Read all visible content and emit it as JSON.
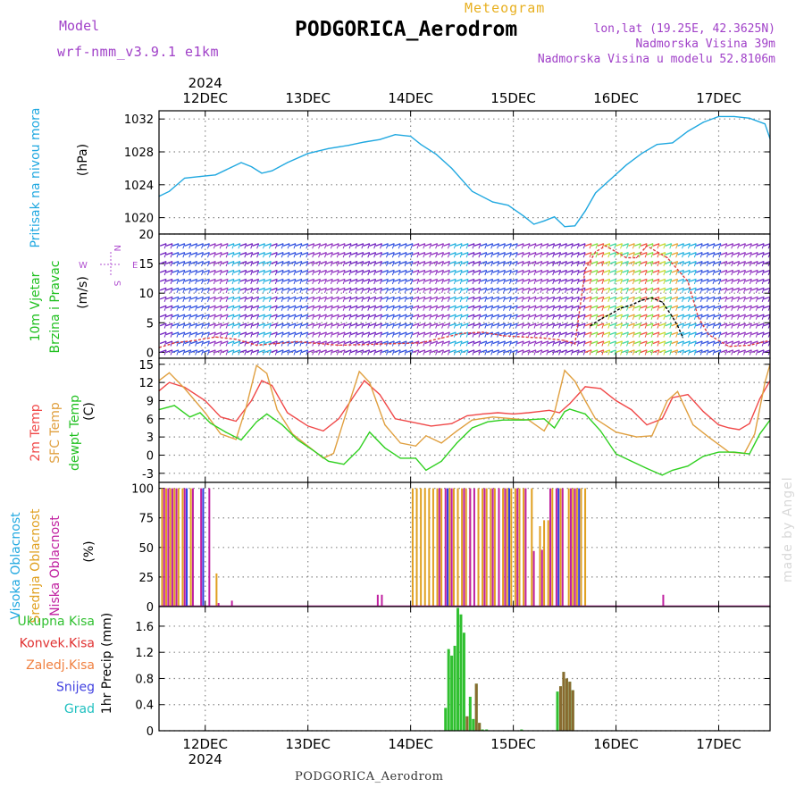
{
  "header": {
    "model_label": "Model",
    "model_name": "wrf-nmm_v3.9.1 e1km",
    "meteogram_label": "Meteogram",
    "station": "PODGORICA_Aerodrom",
    "lonlat": "lon,lat (19.25E, 42.3625N)",
    "altitude": "Nadmorska Visina 39m",
    "model_altitude": "Nadmorska Visina u modelu 52.8106m"
  },
  "footer": {
    "station": "PODGORICA_Aerodrom"
  },
  "watermark": "made by Angel",
  "chart_data": [
    {
      "type": "line",
      "panel": "pressure",
      "ylabel_colored": "Pritisak na nivou mora",
      "ylabel_unit": "(hPa)",
      "ylim": [
        1018,
        1033
      ],
      "yticks": [
        1020,
        1024,
        1028,
        1032
      ],
      "grid": true,
      "x_day_start": 11.55,
      "x_day_end": 17.5,
      "x_top_year": "2024",
      "x_bottom_year": "2024",
      "x_tick_labels": [
        "12DEC",
        "13DEC",
        "14DEC",
        "15DEC",
        "16DEC",
        "17DEC"
      ],
      "series": [
        {
          "name": "",
          "color": "#20a8e0",
          "x": [
            11.55,
            11.65,
            11.8,
            11.95,
            12.1,
            12.25,
            12.35,
            12.45,
            12.55,
            12.65,
            12.8,
            13.0,
            13.2,
            13.4,
            13.55,
            13.7,
            13.85,
            14.0,
            14.1,
            14.25,
            14.4,
            14.5,
            14.6,
            14.8,
            14.95,
            15.1,
            15.2,
            15.3,
            15.4,
            15.5,
            15.6,
            15.7,
            15.8,
            15.95,
            16.1,
            16.25,
            16.4,
            16.55,
            16.7,
            16.85,
            17.0,
            17.15,
            17.3,
            17.45,
            17.5
          ],
          "values": [
            1022.6,
            1023.2,
            1024.8,
            1025.0,
            1025.2,
            1026.1,
            1026.7,
            1026.2,
            1025.4,
            1025.7,
            1026.7,
            1027.8,
            1028.4,
            1028.8,
            1029.2,
            1029.5,
            1030.1,
            1029.9,
            1028.9,
            1027.7,
            1026.0,
            1024.6,
            1023.2,
            1021.9,
            1021.5,
            1020.2,
            1019.2,
            1019.6,
            1020.1,
            1018.9,
            1019.0,
            1020.8,
            1023.0,
            1024.7,
            1026.4,
            1027.8,
            1028.9,
            1029.1,
            1030.5,
            1031.6,
            1032.3,
            1032.3,
            1032.1,
            1031.4,
            1029.6
          ]
        }
      ]
    },
    {
      "type": "line",
      "panel": "wind",
      "ylabel_colored_1": "10m Vjetar",
      "ylabel_colored_2": "Brzina i Pravac",
      "ylabel_unit": "(m/s)",
      "compass_labels": {
        "n": "N",
        "s": "S",
        "e": "E",
        "w": "W"
      },
      "ylim": [
        -1,
        20
      ],
      "yticks": [
        0,
        5,
        10,
        15,
        20
      ],
      "grid": true,
      "series": [
        {
          "name": "",
          "color": "#e04040",
          "style": "dashed",
          "x": [
            11.55,
            11.7,
            11.9,
            12.1,
            12.3,
            12.5,
            12.7,
            12.9,
            13.1,
            13.3,
            13.5,
            13.7,
            13.9,
            14.1,
            14.3,
            14.5,
            14.7,
            14.9,
            15.1,
            15.3,
            15.5,
            15.6,
            15.7,
            15.8,
            15.9,
            16.0,
            16.1,
            16.2,
            16.3,
            16.4,
            16.5,
            16.6,
            16.7,
            16.8,
            16.9,
            17.1,
            17.3,
            17.5
          ],
          "values": [
            0.8,
            1.6,
            2.0,
            2.6,
            2.2,
            1.2,
            1.5,
            1.8,
            1.5,
            1.2,
            1.3,
            1.4,
            1.5,
            1.6,
            2.4,
            3.2,
            3.4,
            2.8,
            2.6,
            2.4,
            2.0,
            1.4,
            14,
            17,
            18,
            17,
            16,
            16,
            18,
            17,
            16,
            14,
            12,
            6,
            3,
            1,
            1.2,
            2.0
          ]
        },
        {
          "name": "",
          "color": "#000000",
          "style": "dashed",
          "x": [
            15.75,
            15.85,
            15.95,
            16.05,
            16.15,
            16.25,
            16.35,
            16.45,
            16.55,
            16.6,
            16.65
          ],
          "values": [
            4.5,
            5.6,
            6.5,
            7.5,
            8.0,
            8.8,
            9.2,
            8.5,
            6.0,
            4.5,
            2.5
          ]
        }
      ]
    },
    {
      "type": "line",
      "panel": "temperature",
      "ylabel_colored_1": "2m Temp",
      "ylabel_colored_2": "SFC Temp",
      "ylabel_colored_3": "dewpt Temp",
      "ylabel_unit": "(C)",
      "ylim": [
        -4.5,
        16
      ],
      "yticks": [
        -3,
        0,
        3,
        6,
        9,
        12,
        15
      ],
      "grid": true,
      "series": [
        {
          "name": "",
          "color": "#f04848",
          "x": [
            11.55,
            11.65,
            11.8,
            12.0,
            12.15,
            12.3,
            12.45,
            12.55,
            12.65,
            12.8,
            13.0,
            13.15,
            13.3,
            13.45,
            13.55,
            13.7,
            13.85,
            14.0,
            14.2,
            14.4,
            14.55,
            14.7,
            14.85,
            15.0,
            15.15,
            15.25,
            15.35,
            15.45,
            15.55,
            15.7,
            15.85,
            16.0,
            16.15,
            16.3,
            16.45,
            16.55,
            16.7,
            16.85,
            17.0,
            17.1,
            17.2,
            17.3,
            17.4,
            17.5
          ],
          "values": [
            10.6,
            12.0,
            11.2,
            9.0,
            6.3,
            5.6,
            9.0,
            12.3,
            11.5,
            7.0,
            4.8,
            4.0,
            6.0,
            9.8,
            12.3,
            10.0,
            6.0,
            5.5,
            4.8,
            5.2,
            6.5,
            6.8,
            7.0,
            6.8,
            7.0,
            7.2,
            7.4,
            7.0,
            8.5,
            11.3,
            11.0,
            9.0,
            7.5,
            5.0,
            6.0,
            9.5,
            10.0,
            7.2,
            5.0,
            4.5,
            4.2,
            5.2,
            9.3,
            12.3
          ]
        },
        {
          "name": "",
          "color": "#e0a040",
          "x": [
            11.55,
            11.65,
            11.8,
            12.0,
            12.15,
            12.3,
            12.4,
            12.5,
            12.6,
            12.7,
            12.85,
            13.0,
            13.15,
            13.25,
            13.4,
            13.5,
            13.6,
            13.75,
            13.9,
            14.05,
            14.15,
            14.3,
            14.45,
            14.6,
            14.8,
            15.0,
            15.15,
            15.3,
            15.4,
            15.5,
            15.6,
            15.7,
            15.8,
            16.0,
            16.2,
            16.35,
            16.5,
            16.6,
            16.75,
            16.9,
            17.1,
            17.25,
            17.35,
            17.45,
            17.5
          ],
          "values": [
            12.3,
            13.6,
            11.0,
            7.0,
            3.5,
            2.6,
            8.0,
            14.8,
            13.5,
            7.5,
            3.5,
            1.5,
            -0.5,
            0.3,
            8.5,
            13.8,
            12.0,
            5.0,
            2.0,
            1.5,
            3.2,
            2.0,
            4.0,
            5.8,
            6.3,
            6.0,
            5.8,
            4.0,
            7.0,
            14.0,
            12.2,
            9.0,
            6.0,
            3.8,
            3.0,
            3.2,
            9.0,
            10.5,
            5.0,
            3.0,
            0.5,
            0.3,
            3.5,
            12.0,
            15.0
          ]
        },
        {
          "name": "",
          "color": "#30d020",
          "x": [
            11.55,
            11.7,
            11.85,
            11.95,
            12.05,
            12.2,
            12.35,
            12.5,
            12.6,
            12.75,
            12.9,
            13.05,
            13.2,
            13.35,
            13.5,
            13.6,
            13.75,
            13.9,
            14.05,
            14.15,
            14.3,
            14.45,
            14.6,
            14.75,
            14.9,
            15.1,
            15.3,
            15.4,
            15.5,
            15.55,
            15.7,
            15.85,
            16.0,
            16.15,
            16.3,
            16.45,
            16.55,
            16.7,
            16.85,
            17.0,
            17.15,
            17.3,
            17.4,
            17.5
          ],
          "values": [
            7.5,
            8.2,
            6.3,
            7.0,
            5.3,
            3.8,
            2.5,
            5.5,
            6.8,
            5.0,
            2.5,
            0.8,
            -1.0,
            -1.5,
            1.0,
            3.8,
            1.2,
            -0.5,
            -0.5,
            -2.5,
            -1.0,
            2.0,
            4.5,
            5.5,
            5.8,
            5.8,
            6.0,
            4.5,
            7.2,
            7.6,
            6.8,
            4.0,
            0.2,
            -1.0,
            -2.2,
            -3.3,
            -2.5,
            -1.8,
            -0.2,
            0.5,
            0.5,
            0.2,
            3.5,
            5.8
          ]
        }
      ]
    },
    {
      "type": "bar",
      "panel": "clouds",
      "ylabel_colored_1": "Visoka Oblacnost",
      "ylabel_colored_2": "Srednja Oblacnost",
      "ylabel_colored_3": "Niska Oblacnost",
      "ylabel_unit": "(%)",
      "ylim": [
        0,
        105
      ],
      "yticks": [
        0,
        25,
        50,
        75,
        100
      ],
      "grid": true,
      "series": [
        {
          "name": "",
          "color": "#e0a020",
          "x": [
            11.58,
            11.62,
            11.66,
            11.7,
            11.74,
            11.78,
            11.86,
            12.11,
            14.02,
            14.06,
            14.1,
            14.14,
            14.18,
            14.22,
            14.26,
            14.3,
            14.38,
            14.42,
            14.46,
            14.5,
            14.54,
            14.58,
            14.66,
            14.7,
            14.74,
            14.78,
            14.82,
            14.9,
            14.94,
            14.98,
            15.02,
            15.06,
            15.1,
            15.18,
            15.26,
            15.3,
            15.34,
            15.38,
            15.46,
            15.54,
            15.58,
            15.62,
            15.66,
            15.7
          ],
          "values": [
            100,
            100,
            100,
            100,
            100,
            100,
            100,
            28,
            100,
            100,
            100,
            100,
            100,
            100,
            100,
            100,
            100,
            100,
            100,
            100,
            100,
            100,
            100,
            100,
            100,
            100,
            100,
            100,
            100,
            100,
            100,
            100,
            100,
            100,
            68,
            73,
            73,
            100,
            100,
            100,
            100,
            100,
            100,
            100
          ]
        },
        {
          "name": "",
          "color": "#c020a0",
          "x": [
            11.6,
            11.64,
            11.68,
            11.72,
            11.8,
            11.88,
            11.96,
            12.04,
            12.13,
            12.26,
            13.68,
            13.72,
            14.28,
            14.34,
            14.4,
            14.52,
            14.58,
            14.62,
            14.72,
            14.8,
            14.86,
            14.92,
            15.04,
            15.12,
            15.2,
            15.28,
            15.36,
            15.42,
            15.48,
            15.56,
            15.6,
            16.46
          ],
          "values": [
            100,
            100,
            100,
            100,
            100,
            100,
            100,
            100,
            3,
            5,
            10,
            10,
            100,
            100,
            100,
            100,
            100,
            100,
            100,
            100,
            100,
            100,
            100,
            100,
            47,
            48,
            100,
            100,
            100,
            100,
            100,
            10
          ]
        },
        {
          "name": "",
          "color": "#3040e0",
          "x": [
            11.82,
            11.98,
            14.36,
            14.96,
            15.44,
            15.64
          ],
          "values": [
            100,
            100,
            100,
            100,
            100,
            100
          ]
        }
      ]
    },
    {
      "type": "bar",
      "panel": "precipitation",
      "legend": [
        "Ukupna Kisa",
        "Konvek.Kisa",
        "Zaledj.Kisa",
        "Snijeg",
        "Grad"
      ],
      "legend_colors": [
        "#30c030",
        "#e03030",
        "#f08040",
        "#4040e0",
        "#20c0c0"
      ],
      "ylabel_unit": "1hr Precip (mm)",
      "ylim": [
        0,
        1.9
      ],
      "yticks": [
        0,
        0.4,
        0.8,
        1.2,
        1.6
      ],
      "grid": true,
      "series": [
        {
          "name": "Ukupna Kisa",
          "color": "#30c030",
          "x": [
            14.34,
            14.37,
            14.4,
            14.43,
            14.46,
            14.49,
            14.52,
            14.55,
            14.58,
            14.61,
            14.64,
            14.67,
            14.7,
            14.74,
            15.08,
            15.43,
            15.46,
            15.49,
            15.52,
            15.55,
            15.58
          ],
          "values": [
            0.35,
            1.25,
            1.15,
            1.3,
            1.88,
            1.78,
            1.5,
            0.22,
            0.52,
            0.18,
            0.72,
            0.12,
            0.02,
            0.02,
            0.02,
            0.6,
            0.68,
            0.9,
            0.8,
            0.75,
            0.62
          ]
        },
        {
          "name": "Konvek.Kisa",
          "color": "#8a6a30",
          "x": [
            14.55,
            14.64,
            14.67,
            15.46,
            15.49,
            15.52,
            15.55,
            15.58
          ],
          "values": [
            0.22,
            0.72,
            0.12,
            0.68,
            0.9,
            0.8,
            0.75,
            0.62
          ]
        }
      ]
    }
  ]
}
